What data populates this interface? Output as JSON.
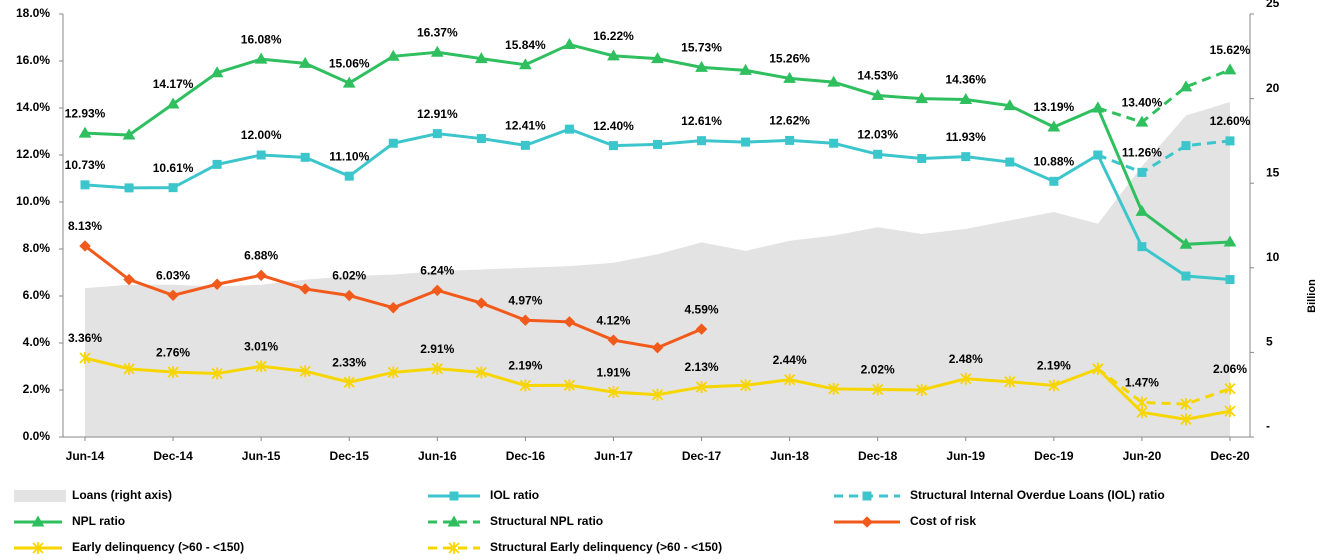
{
  "chart_data": {
    "type": "line",
    "categories": [
      "Jun-14",
      null,
      "Dec-14",
      null,
      "Jun-15",
      null,
      "Dec-15",
      null,
      "Jun-16",
      null,
      "Dec-16",
      null,
      "Jun-17",
      null,
      "Dec-17",
      null,
      "Jun-18",
      null,
      "Dec-18",
      null,
      "Jun-19",
      null,
      "Dec-19",
      null,
      "Jun-20",
      null,
      "Dec-20"
    ],
    "ylim": [
      0,
      18
    ],
    "yticks": [
      {
        "value": 0,
        "label": "0.0%"
      },
      {
        "value": 2,
        "label": "2.0%"
      },
      {
        "value": 4,
        "label": "4.0%"
      },
      {
        "value": 6,
        "label": "6.0%"
      },
      {
        "value": 8,
        "label": "8.0%"
      },
      {
        "value": 10,
        "label": "10.0%"
      },
      {
        "value": 12,
        "label": "12.0%"
      },
      {
        "value": 14,
        "label": "14.0%"
      },
      {
        "value": 16,
        "label": "16.0%"
      },
      {
        "value": 18,
        "label": "18.0%"
      }
    ],
    "y2lim": [
      0,
      25
    ],
    "y2ticks": [
      {
        "value": 0,
        "label": "-"
      },
      5,
      10,
      15,
      20,
      25
    ],
    "y2label": "Billion",
    "legend": "bottom",
    "series": [
      {
        "name": "Loans (right axis)",
        "type": "area",
        "axis": "y2",
        "color": "#e3e3e3",
        "values": [
          8.8,
          9.0,
          9.0,
          8.9,
          9.0,
          9.3,
          9.5,
          9.6,
          9.8,
          9.9,
          10.0,
          10.1,
          10.3,
          10.8,
          11.5,
          11.0,
          11.6,
          11.9,
          12.4,
          12.0,
          12.3,
          12.8,
          13.3,
          12.6,
          16.0,
          19.0,
          19.8
        ]
      },
      {
        "name": "IOL ratio",
        "type": "line",
        "color": "#3cc6cc",
        "marker": "square",
        "dashed": false,
        "values": [
          10.73,
          10.6,
          10.61,
          11.6,
          12.0,
          11.9,
          11.1,
          12.5,
          12.91,
          12.7,
          12.41,
          13.1,
          12.4,
          12.45,
          12.61,
          12.55,
          12.62,
          12.5,
          12.03,
          11.85,
          11.93,
          11.7,
          10.88,
          12.0,
          8.1,
          6.85,
          6.7
        ],
        "value_labels": [
          "10.73%",
          null,
          "10.61%",
          null,
          "12.00%",
          null,
          "11.10%",
          null,
          "12.91%",
          null,
          "12.41%",
          null,
          "12.40%",
          null,
          "12.61%",
          null,
          "12.62%",
          null,
          "12.03%",
          null,
          "11.93%",
          null,
          "10.88%",
          null,
          null,
          null,
          null
        ]
      },
      {
        "name": "Structural Internal Overdue Loans (IOL) ratio",
        "type": "line",
        "color": "#3cc6cc",
        "marker": "square",
        "dashed": true,
        "values": [
          null,
          null,
          null,
          null,
          null,
          null,
          null,
          null,
          null,
          null,
          null,
          null,
          null,
          null,
          null,
          null,
          null,
          null,
          null,
          null,
          null,
          null,
          null,
          12.0,
          11.26,
          12.4,
          12.6
        ],
        "value_labels": [
          null,
          null,
          null,
          null,
          null,
          null,
          null,
          null,
          null,
          null,
          null,
          null,
          null,
          null,
          null,
          null,
          null,
          null,
          null,
          null,
          null,
          null,
          null,
          null,
          "11.26%",
          null,
          "12.60%"
        ]
      },
      {
        "name": "NPL ratio",
        "type": "line",
        "color": "#2fbf5f",
        "marker": "triangle",
        "dashed": false,
        "values": [
          12.93,
          12.85,
          14.17,
          15.5,
          16.08,
          15.9,
          15.06,
          16.2,
          16.37,
          16.1,
          15.84,
          16.7,
          16.22,
          16.1,
          15.73,
          15.6,
          15.26,
          15.1,
          14.53,
          14.4,
          14.36,
          14.1,
          13.19,
          14.0,
          9.6,
          8.2,
          8.3
        ],
        "value_labels": [
          "12.93%",
          null,
          "14.17%",
          null,
          "16.08%",
          null,
          "15.06%",
          null,
          "16.37%",
          null,
          "15.84%",
          null,
          "16.22%",
          null,
          "15.73%",
          null,
          "15.26%",
          null,
          "14.53%",
          null,
          "14.36%",
          null,
          "13.19%",
          null,
          null,
          null,
          null
        ]
      },
      {
        "name": "Structural NPL ratio",
        "type": "line",
        "color": "#2fbf5f",
        "marker": "triangle",
        "dashed": true,
        "values": [
          null,
          null,
          null,
          null,
          null,
          null,
          null,
          null,
          null,
          null,
          null,
          null,
          null,
          null,
          null,
          null,
          null,
          null,
          null,
          null,
          null,
          null,
          null,
          14.0,
          13.4,
          14.9,
          15.62
        ],
        "value_labels": [
          null,
          null,
          null,
          null,
          null,
          null,
          null,
          null,
          null,
          null,
          null,
          null,
          null,
          null,
          null,
          null,
          null,
          null,
          null,
          null,
          null,
          null,
          null,
          null,
          "13.40%",
          null,
          "15.62%"
        ]
      },
      {
        "name": "Cost of risk",
        "type": "line",
        "color": "#f25a1c",
        "marker": "diamond",
        "dashed": false,
        "values": [
          8.13,
          6.7,
          6.03,
          6.5,
          6.88,
          6.3,
          6.02,
          5.5,
          6.24,
          5.7,
          4.97,
          4.9,
          4.12,
          3.8,
          4.59,
          null,
          null,
          null,
          null,
          null,
          null,
          null,
          null,
          null,
          null,
          null,
          null
        ],
        "value_labels": [
          "8.13%",
          null,
          "6.03%",
          null,
          "6.88%",
          null,
          "6.02%",
          null,
          "6.24%",
          null,
          "4.97%",
          null,
          "4.12%",
          null,
          "4.59%",
          null,
          null,
          null,
          null,
          null,
          null,
          null,
          null,
          null,
          null,
          null,
          null
        ]
      },
      {
        "name": "Early delinquency (>60 - <150)",
        "type": "line",
        "color": "#f7d600",
        "marker": "star",
        "dashed": false,
        "values": [
          3.36,
          2.9,
          2.76,
          2.7,
          3.01,
          2.8,
          2.33,
          2.75,
          2.91,
          2.75,
          2.19,
          2.2,
          1.91,
          1.8,
          2.13,
          2.2,
          2.44,
          2.05,
          2.02,
          2.0,
          2.48,
          2.35,
          2.19,
          2.9,
          1.05,
          0.75,
          1.1
        ],
        "value_labels": [
          "3.36%",
          null,
          "2.76%",
          null,
          "3.01%",
          null,
          "2.33%",
          null,
          "2.91%",
          null,
          "2.19%",
          null,
          "1.91%",
          null,
          "2.13%",
          null,
          "2.44%",
          null,
          "2.02%",
          null,
          "2.48%",
          null,
          "2.19%",
          null,
          null,
          null,
          null
        ]
      },
      {
        "name": "Structural Early delinquency (>60 - <150)",
        "type": "line",
        "color": "#f7d600",
        "marker": "star",
        "dashed": true,
        "values": [
          null,
          null,
          null,
          null,
          null,
          null,
          null,
          null,
          null,
          null,
          null,
          null,
          null,
          null,
          null,
          null,
          null,
          null,
          null,
          null,
          null,
          null,
          null,
          2.9,
          1.47,
          1.4,
          2.06
        ],
        "value_labels": [
          null,
          null,
          null,
          null,
          null,
          null,
          null,
          null,
          null,
          null,
          null,
          null,
          null,
          null,
          null,
          null,
          null,
          null,
          null,
          null,
          null,
          null,
          null,
          null,
          "1.47%",
          null,
          "2.06%"
        ]
      }
    ]
  }
}
